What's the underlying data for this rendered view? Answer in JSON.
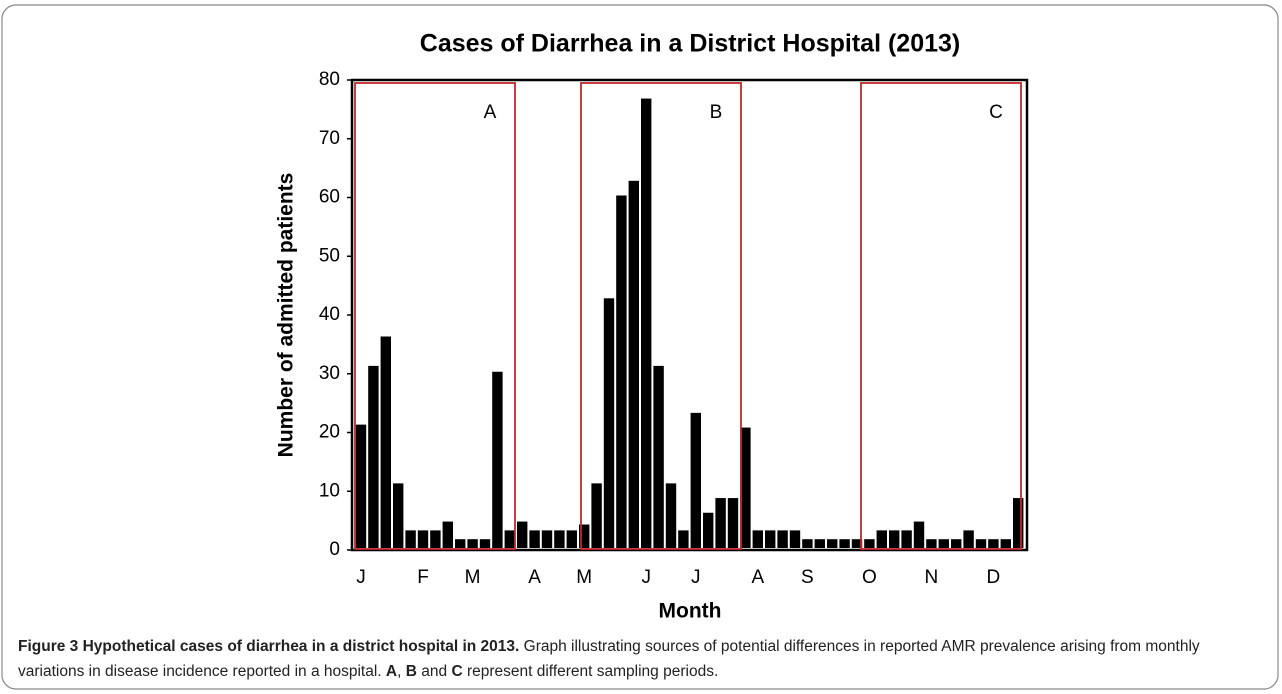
{
  "chart_data": {
    "type": "bar",
    "title": "Cases of Diarrhea in a District Hospital (2013)",
    "x_label": "Month",
    "y_label": "Number of admitted patients",
    "categories": [
      "J",
      null,
      null,
      null,
      null,
      "F",
      null,
      null,
      null,
      "M",
      null,
      null,
      null,
      null,
      "A",
      null,
      null,
      null,
      "M",
      null,
      null,
      null,
      null,
      "J",
      null,
      null,
      null,
      "J",
      null,
      null,
      null,
      null,
      "A",
      null,
      null,
      null,
      "S",
      null,
      null,
      null,
      null,
      "O",
      null,
      null,
      null,
      null,
      "N",
      null,
      null,
      null,
      null,
      "D",
      null,
      null
    ],
    "values": [
      21,
      31,
      36,
      11,
      3,
      3,
      3,
      4.5,
      1.5,
      1.5,
      1.5,
      30,
      3,
      4.5,
      3,
      3,
      3,
      3,
      4,
      11,
      42.5,
      60,
      62.5,
      76.5,
      31,
      11,
      3,
      23,
      6,
      8.5,
      8.5,
      20.5,
      3,
      3,
      3,
      3,
      1.5,
      1.5,
      1.5,
      1.5,
      1.5,
      1.5,
      3,
      3,
      3,
      4.5,
      1.5,
      1.5,
      1.5,
      3,
      1.5,
      1.5,
      1.5,
      8.5
    ],
    "color": "#000000",
    "ylim": [
      0,
      80
    ],
    "yticks": [
      0,
      10,
      20,
      30,
      40,
      50,
      60,
      70,
      80
    ],
    "annotations": [
      {
        "label": "A"
      },
      {
        "label": "B"
      },
      {
        "label": "C"
      }
    ],
    "annotation_color": "#c0282d"
  },
  "caption": {
    "title": "Figure 3 Hypothetical cases of diarrhea in a district hospital in 2013.",
    "parts": [
      " Graph illustrating sources of potential differences in reported AMR prevalence arising from monthly variations in disease incidence reported in a hospital. ",
      "A",
      ", ",
      "B",
      " and ",
      "C",
      " represent different sampling periods."
    ]
  }
}
